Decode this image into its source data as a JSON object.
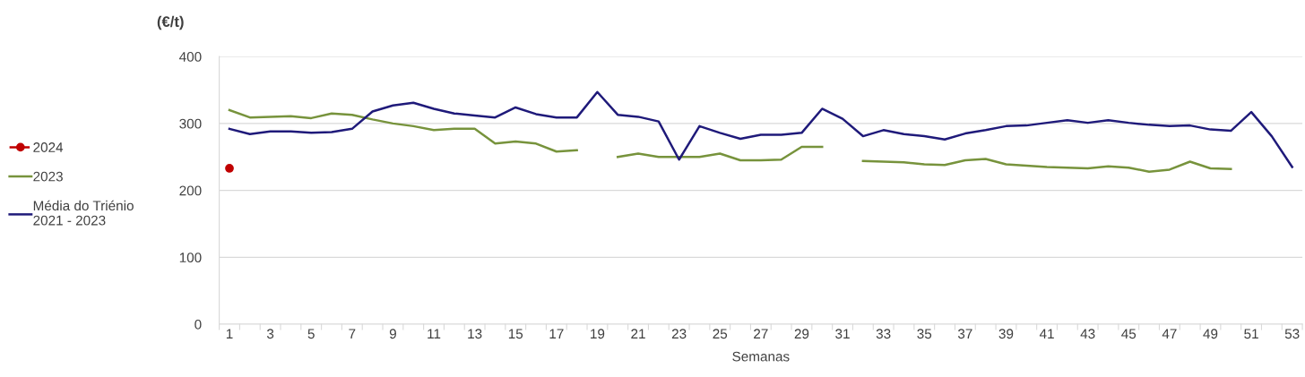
{
  "chart_data": {
    "type": "line",
    "ylabel": "(€/t)",
    "xlabel": "Semanas",
    "categories": [
      "1",
      null,
      "3",
      null,
      "5",
      null,
      "7",
      null,
      "9",
      null,
      "11",
      null,
      "13",
      null,
      "15",
      null,
      "17",
      null,
      "19",
      null,
      "21",
      null,
      "23",
      null,
      "25",
      null,
      "27",
      null,
      "29",
      null,
      "31",
      null,
      "33",
      null,
      "35",
      null,
      "37",
      null,
      "39",
      null,
      "41",
      null,
      "43",
      null,
      "45",
      null,
      "47",
      null,
      "49",
      null,
      "51",
      null,
      "53"
    ],
    "ylim": [
      0,
      400
    ],
    "yticks": [
      0,
      100,
      200,
      300,
      400
    ],
    "grid": "y",
    "legend": "left",
    "series": [
      {
        "name": "2024",
        "color": "#c00000",
        "marker": "circle",
        "line_style": "dashed",
        "values": [
          233,
          null,
          null,
          null,
          null,
          null,
          null,
          null,
          null,
          null,
          null,
          null,
          null,
          null,
          null,
          null,
          null,
          null,
          null,
          null,
          null,
          null,
          null,
          null,
          null,
          null,
          null,
          null,
          null,
          null,
          null,
          null,
          null,
          null,
          null,
          null,
          null,
          null,
          null,
          null,
          null,
          null,
          null,
          null,
          null,
          null,
          null,
          null,
          null,
          null,
          null,
          null,
          null
        ]
      },
      {
        "name": "2023",
        "color": "#77933c",
        "marker": "none",
        "line_style": "solid",
        "values": [
          320,
          309,
          310,
          311,
          308,
          315,
          313,
          306,
          300,
          296,
          290,
          292,
          292,
          270,
          273,
          270,
          258,
          260,
          null,
          250,
          255,
          250,
          250,
          250,
          255,
          245,
          245,
          246,
          265,
          265,
          null,
          244,
          243,
          242,
          239,
          238,
          245,
          247,
          239,
          237,
          235,
          234,
          233,
          236,
          234,
          228,
          231,
          243,
          233,
          232,
          null,
          null,
          null
        ]
      },
      {
        "name": "Média do Triénio\n2021 - 2023",
        "color": "#1f1a7a",
        "marker": "none",
        "line_style": "solid",
        "values": [
          292,
          284,
          288,
          288,
          286,
          287,
          292,
          318,
          327,
          331,
          322,
          315,
          312,
          309,
          324,
          314,
          309,
          309,
          347,
          313,
          310,
          303,
          246,
          296,
          286,
          277,
          283,
          283,
          286,
          322,
          307,
          281,
          290,
          284,
          281,
          276,
          285,
          290,
          296,
          297,
          301,
          305,
          301,
          305,
          301,
          298,
          296,
          297,
          291,
          289,
          317,
          281,
          235
        ]
      }
    ]
  }
}
